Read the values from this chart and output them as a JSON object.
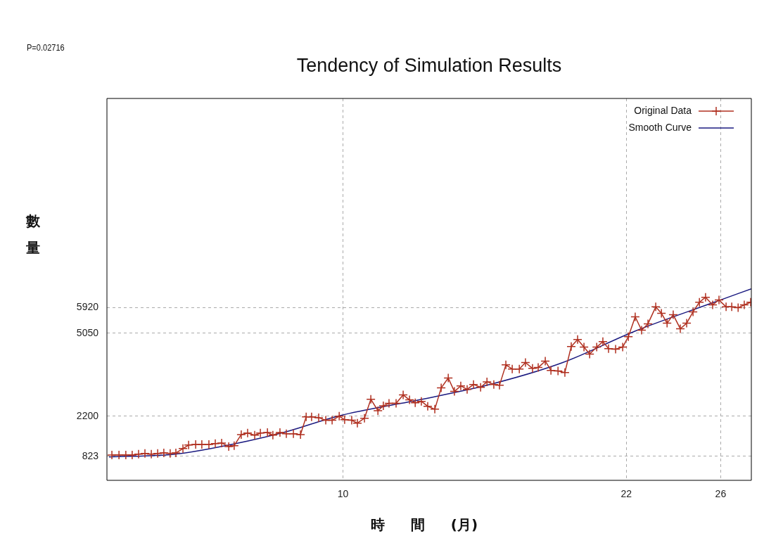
{
  "chart_data": {
    "type": "line",
    "title": "Tendency of Simulation Results",
    "xlabel": "時 間 (月)",
    "ylabel": "數量",
    "annotations": [
      "P=0.02716"
    ],
    "xlim": [
      0,
      27.3
    ],
    "xticks": [
      10,
      22,
      26
    ],
    "ylim": [
      0,
      13100
    ],
    "yticks": [
      823,
      2200,
      5050,
      5920
    ],
    "grid": true,
    "legend": "top right",
    "series": [
      {
        "name": "Original Data",
        "color": "#b03020",
        "marker": "cross",
        "x": [
          0.21,
          0.51,
          0.8,
          1.07,
          1.34,
          1.61,
          1.88,
          2.15,
          2.41,
          2.68,
          2.92,
          3.22,
          3.46,
          3.76,
          4.02,
          4.32,
          4.59,
          4.86,
          5.16,
          5.39,
          5.69,
          5.96,
          6.26,
          6.5,
          6.8,
          7.03,
          7.33,
          7.6,
          7.9,
          8.2,
          8.44,
          8.67,
          8.97,
          9.27,
          9.54,
          9.84,
          10.07,
          10.37,
          10.61,
          10.91,
          11.18,
          11.48,
          11.71,
          11.95,
          12.25,
          12.55,
          12.82,
          13.06,
          13.32,
          13.59,
          13.89,
          14.16,
          14.46,
          14.72,
          14.99,
          15.26,
          15.53,
          15.83,
          16.1,
          16.39,
          16.63,
          16.9,
          17.17,
          17.47,
          17.73,
          18.03,
          18.27,
          18.57,
          18.81,
          19.11,
          19.4,
          19.67,
          19.94,
          20.21,
          20.45,
          20.75,
          21.01,
          21.25,
          21.55,
          21.85,
          22.09,
          22.38,
          22.65,
          22.92,
          23.25,
          23.49,
          23.73,
          23.99,
          24.29,
          24.56,
          24.83,
          25.1,
          25.36,
          25.66,
          25.93,
          26.23,
          26.47,
          26.74,
          27,
          27.27
        ],
        "values": [
          870,
          870,
          870,
          870,
          900,
          920,
          900,
          920,
          940,
          920,
          940,
          1090,
          1210,
          1230,
          1230,
          1230,
          1260,
          1280,
          1160,
          1190,
          1570,
          1620,
          1550,
          1620,
          1640,
          1550,
          1640,
          1600,
          1600,
          1570,
          2180,
          2180,
          2150,
          2060,
          2060,
          2200,
          2080,
          2060,
          1960,
          2130,
          2780,
          2390,
          2560,
          2640,
          2640,
          2930,
          2760,
          2660,
          2710,
          2540,
          2440,
          3170,
          3510,
          3050,
          3240,
          3120,
          3290,
          3190,
          3380,
          3290,
          3260,
          3960,
          3820,
          3820,
          4040,
          3840,
          3870,
          4090,
          3770,
          3750,
          3700,
          4590,
          4830,
          4570,
          4330,
          4570,
          4760,
          4520,
          4500,
          4570,
          4930,
          5610,
          5150,
          5370,
          5950,
          5730,
          5390,
          5680,
          5200,
          5390,
          5780,
          6110,
          6280,
          6020,
          6190,
          5950,
          5950,
          5920,
          6020,
          6110
        ]
      },
      {
        "name": "Smooth Curve",
        "color": "#1a1a80",
        "marker": "none",
        "x": [
          0.09,
          2.92,
          4.41,
          7.39,
          9.87,
          13.35,
          16.33,
          19.31,
          22.38,
          25.66,
          27.3
        ],
        "values": [
          800,
          900,
          1090,
          1620,
          2220,
          2780,
          3310,
          4040,
          5120,
          6090,
          6570
        ]
      }
    ]
  }
}
